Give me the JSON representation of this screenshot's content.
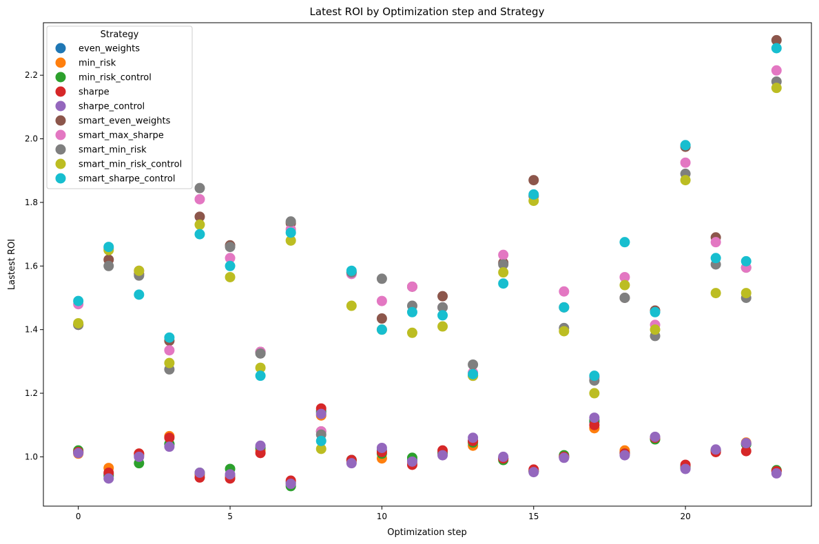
{
  "chart_data": {
    "type": "scatter",
    "title": "Latest ROI by Optimization step and Strategy",
    "xlabel": "Optimization step",
    "ylabel": "Lastest ROI",
    "xlim": [
      -1.15,
      24.15
    ],
    "ylim": [
      0.845,
      2.365
    ],
    "xticks": [
      0,
      5,
      10,
      15,
      20
    ],
    "yticks": [
      1.0,
      1.2,
      1.4,
      1.6,
      1.8,
      2.0,
      2.2
    ],
    "x": [
      0,
      1,
      2,
      3,
      4,
      5,
      6,
      7,
      8,
      9,
      10,
      11,
      12,
      13,
      14,
      15,
      16,
      17,
      18,
      19,
      20,
      21,
      22,
      23
    ],
    "legend": {
      "title": "Strategy",
      "placement": "upper left"
    },
    "series": [
      {
        "name": "even_weights",
        "color": "#1f77b4",
        "values": [
          1.015,
          0.945,
          1.005,
          1.04,
          0.945,
          0.94,
          1.025,
          0.92,
          1.145,
          0.99,
          1.02,
          0.99,
          1.015,
          1.05,
          0.995,
          0.955,
          1.0,
          1.11,
          1.015,
          1.06,
          0.97,
          1.02,
          1.04,
          0.955
        ]
      },
      {
        "name": "min_risk",
        "color": "#ff7f0e",
        "values": [
          1.01,
          0.965,
          1.01,
          1.065,
          0.945,
          0.935,
          1.02,
          0.915,
          1.13,
          0.985,
          0.995,
          0.98,
          1.01,
          1.035,
          0.995,
          0.955,
          1.0,
          1.09,
          1.02,
          1.06,
          0.965,
          1.02,
          1.045,
          0.955
        ]
      },
      {
        "name": "min_risk_control",
        "color": "#2ca02c",
        "values": [
          1.02,
          0.94,
          0.98,
          1.04,
          0.95,
          0.962,
          1.03,
          0.908,
          1.14,
          0.99,
          1.01,
          0.997,
          1.01,
          1.045,
          0.99,
          0.955,
          1.005,
          1.115,
          1.01,
          1.055,
          0.965,
          1.02,
          1.04,
          0.958
        ]
      },
      {
        "name": "sharpe",
        "color": "#d62728",
        "values": [
          1.015,
          0.95,
          1.01,
          1.06,
          0.935,
          0.932,
          1.012,
          0.925,
          1.152,
          0.99,
          1.015,
          0.975,
          1.02,
          1.05,
          0.995,
          0.96,
          1.0,
          1.1,
          1.01,
          1.06,
          0.975,
          1.015,
          1.018,
          0.955
        ]
      },
      {
        "name": "sharpe_control",
        "color": "#9467bd",
        "values": [
          1.012,
          0.932,
          1.0,
          1.032,
          0.95,
          0.945,
          1.035,
          0.915,
          1.135,
          0.98,
          1.028,
          0.985,
          1.005,
          1.06,
          1.0,
          0.952,
          0.997,
          1.123,
          1.005,
          1.063,
          0.962,
          1.023,
          1.043,
          0.948
        ]
      },
      {
        "name": "smart_even_weights",
        "color": "#8c564b",
        "values": [
          1.415,
          1.62,
          1.575,
          1.365,
          1.755,
          1.665,
          1.33,
          1.735,
          1.08,
          1.58,
          1.435,
          1.535,
          1.505,
          1.255,
          1.61,
          1.87,
          1.47,
          1.25,
          1.5,
          1.46,
          1.975,
          1.69,
          1.595,
          2.31
        ]
      },
      {
        "name": "smart_max_sharpe",
        "color": "#e377c2",
        "values": [
          1.48,
          1.655,
          1.585,
          1.335,
          1.81,
          1.625,
          1.33,
          1.715,
          1.08,
          1.575,
          1.49,
          1.535,
          1.47,
          1.265,
          1.635,
          1.82,
          1.52,
          1.25,
          1.565,
          1.415,
          1.925,
          1.675,
          1.595,
          2.215
        ]
      },
      {
        "name": "smart_min_risk",
        "color": "#7f7f7f",
        "values": [
          1.415,
          1.6,
          1.57,
          1.275,
          1.845,
          1.66,
          1.325,
          1.74,
          1.07,
          1.58,
          1.56,
          1.475,
          1.47,
          1.29,
          1.605,
          1.82,
          1.405,
          1.24,
          1.5,
          1.38,
          1.89,
          1.605,
          1.5,
          2.18
        ]
      },
      {
        "name": "smart_min_risk_control",
        "color": "#bcbd22",
        "values": [
          1.42,
          1.65,
          1.585,
          1.295,
          1.73,
          1.565,
          1.28,
          1.68,
          1.025,
          1.475,
          1.4,
          1.39,
          1.41,
          1.255,
          1.58,
          1.805,
          1.395,
          1.2,
          1.54,
          1.4,
          1.87,
          1.515,
          1.515,
          2.16
        ]
      },
      {
        "name": "smart_sharpe_control",
        "color": "#17becf",
        "values": [
          1.49,
          1.66,
          1.51,
          1.375,
          1.7,
          1.6,
          1.255,
          1.705,
          1.05,
          1.585,
          1.4,
          1.455,
          1.445,
          1.26,
          1.545,
          1.825,
          1.47,
          1.255,
          1.675,
          1.455,
          1.98,
          1.625,
          1.615,
          2.285
        ]
      }
    ]
  }
}
